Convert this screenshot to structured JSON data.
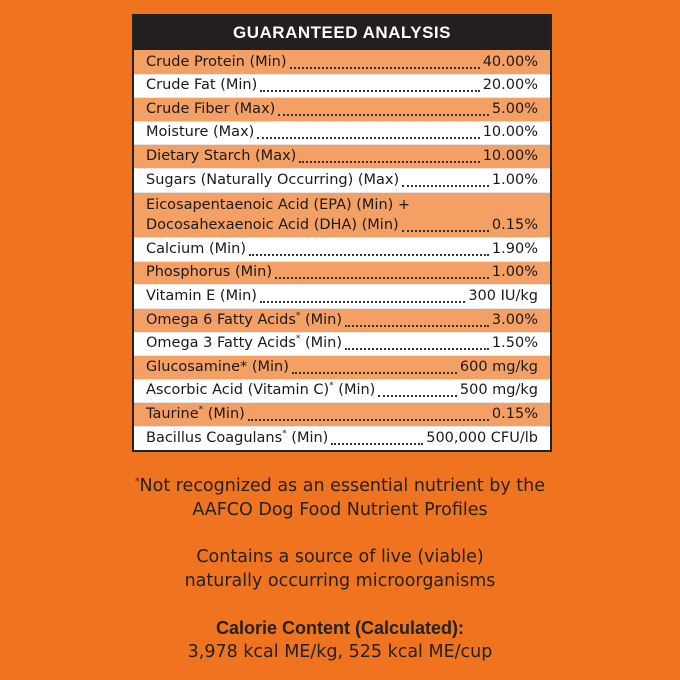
{
  "header": {
    "title": "GUARANTEED ANALYSIS"
  },
  "rows": [
    {
      "name": "Crude Protein (Min)",
      "sup": "",
      "name_suffix": "",
      "value": "40.00%"
    },
    {
      "name": "Crude Fat (Min)",
      "sup": "",
      "name_suffix": "",
      "value": "20.00%"
    },
    {
      "name": "Crude Fiber (Max)",
      "sup": "",
      "name_suffix": "",
      "value": "5.00%"
    },
    {
      "name": "Moisture (Max)",
      "sup": "",
      "name_suffix": "",
      "value": "10.00%"
    },
    {
      "name": "Dietary Starch (Max)",
      "sup": "",
      "name_suffix": "",
      "value": "10.00%"
    },
    {
      "name": "Sugars (Naturally Occurring) (Max)",
      "sup": "",
      "name_suffix": "",
      "value": "1.00%"
    },
    {
      "name_line1": "Eicosapentaenoic Acid (EPA) (Min) +",
      "name": "Docosahexaenoic Acid (DHA) (Min)",
      "sup": "",
      "name_suffix": "",
      "value": "0.15%"
    },
    {
      "name": "Calcium (Min)",
      "sup": "",
      "name_suffix": "",
      "value": "1.90%"
    },
    {
      "name": "Phosphorus (Min)",
      "sup": "",
      "name_suffix": "",
      "value": "1.00%"
    },
    {
      "name": "Vitamin E (Min)",
      "sup": "",
      "name_suffix": "",
      "value": "300 IU/kg"
    },
    {
      "name": "Omega 6 Fatty Acids",
      "sup": "*",
      "name_suffix": " (Min)",
      "value": "3.00%"
    },
    {
      "name": "Omega 3 Fatty Acids",
      "sup": "*",
      "name_suffix": " (Min)",
      "value": "1.50%"
    },
    {
      "name": "Glucosamine* (Min)",
      "sup": "",
      "name_suffix": "",
      "value": "600 mg/kg"
    },
    {
      "name": "Ascorbic Acid (Vitamin C)",
      "sup": "*",
      "name_suffix": " (Min)",
      "value": "500 mg/kg"
    },
    {
      "name": "Taurine",
      "sup": "*",
      "name_suffix": " (Min)",
      "value": "0.15%"
    },
    {
      "name": "Bacillus Coagulans",
      "sup": "*",
      "name_suffix": " (Min)",
      "value": "500,000 CFU/lb"
    }
  ],
  "notes": {
    "star_mark": "*",
    "star_line1": "Not recognized as an essential nutrient by the",
    "star_line2": "AAFCO Dog Food Nutrient Profiles",
    "live_line1": "Contains a source of live (viable)",
    "live_line2": "naturally occurring microorganisms",
    "calorie_title": "Calorie Content (Calculated):",
    "calorie_value": "3,978 kcal ME/kg, 525 kcal ME/cup"
  },
  "colors": {
    "background": "#f07320",
    "stripe": "#f4a064",
    "header": "#231f20"
  }
}
